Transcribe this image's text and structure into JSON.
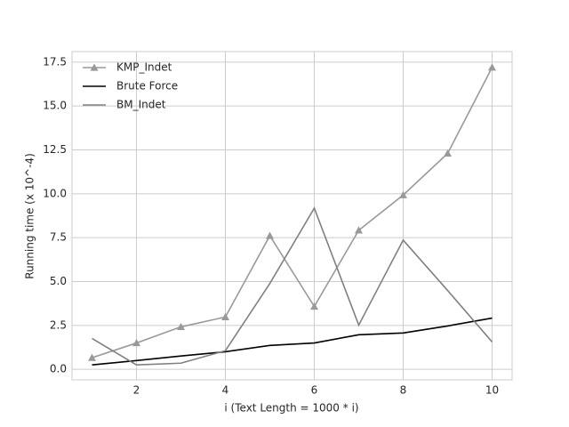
{
  "chart_data": {
    "type": "line",
    "xlabel": "i (Text Length = 1000 * i)",
    "ylabel": "Running time (x 10^-4)",
    "x": [
      1,
      2,
      3,
      4,
      5,
      6,
      7,
      8,
      9,
      10
    ],
    "series": [
      {
        "name": "KMP_Indet",
        "color": "#999999",
        "marker": "triangle",
        "values": [
          0.66,
          1.5,
          2.42,
          2.98,
          7.61,
          3.58,
          7.92,
          9.93,
          12.3,
          17.2
        ]
      },
      {
        "name": "Brute Force",
        "color": "#000000",
        "values": [
          0.25,
          0.5,
          0.76,
          1.0,
          1.36,
          1.5,
          1.97,
          2.07,
          2.47,
          2.92
        ]
      },
      {
        "name": "BM_Indet",
        "color": "#808080",
        "values": [
          1.76,
          0.25,
          0.35,
          1.06,
          4.89,
          9.18,
          2.52,
          7.36,
          4.49,
          1.56
        ]
      }
    ],
    "xlim": [
      0.55,
      10.45
    ],
    "xticks": [
      2,
      4,
      6,
      8,
      10
    ],
    "ylim": [
      -0.6,
      18.1
    ],
    "yticks": [
      {
        "value": 0,
        "label": "0.0"
      },
      2.5,
      {
        "value": 5,
        "label": "5.0"
      },
      7.5,
      {
        "value": 10,
        "label": "10.0"
      },
      12.5,
      {
        "value": 15,
        "label": "15.0"
      },
      17.5
    ],
    "grid": true,
    "legend": "upper left"
  }
}
